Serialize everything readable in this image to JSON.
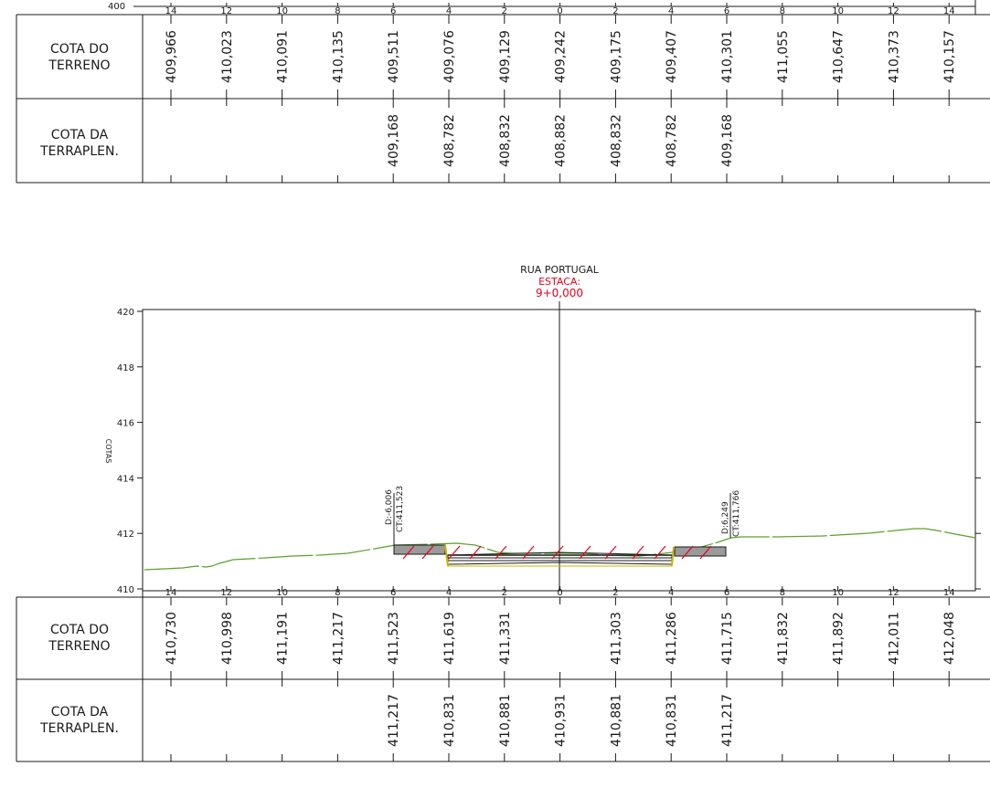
{
  "colors": {
    "line": "#1a1a1a",
    "terrain": "#5aa02c",
    "annotation": "#e8001c",
    "hatch": "#e8001c",
    "fill_gray": "#9a9a9a",
    "road_edge": "#c8b400"
  },
  "top_section": {
    "left_axis_label": "400",
    "offsets": [
      "14",
      "12",
      "10",
      "8",
      "6",
      "4",
      "2",
      "0",
      "2",
      "4",
      "6",
      "8",
      "10",
      "12",
      "14"
    ],
    "row_labels": {
      "terreno": [
        "COTA DO",
        "TERRENO"
      ],
      "terraplen": [
        "COTA DA",
        "TERRAPLEN."
      ]
    },
    "cota_terreno": [
      "409,966",
      "410,023",
      "410,091",
      "410,135",
      "409,511",
      "409,076",
      "409,129",
      "409,242",
      "409,175",
      "409,407",
      "410,301",
      "411,055",
      "410,647",
      "410,373",
      "410,157"
    ],
    "cota_terraplen": [
      "",
      "",
      "",
      "",
      "409,168",
      "408,782",
      "408,832",
      "408,882",
      "408,832",
      "408,782",
      "409,168",
      "",
      "",
      "",
      ""
    ]
  },
  "bottom_section": {
    "title": "RUA PORTUGAL",
    "station_label": "ESTACA:",
    "station_value": "9+0,000",
    "y_axis_label": "COTAS",
    "y_ticks": [
      "420",
      "418",
      "416",
      "414",
      "412",
      "410"
    ],
    "y_values": [
      420,
      418,
      416,
      414,
      412,
      410
    ],
    "offsets": [
      "14",
      "12",
      "10",
      "8",
      "6",
      "4",
      "2",
      "0",
      "2",
      "4",
      "6",
      "8",
      "10",
      "12",
      "14"
    ],
    "left_cut": {
      "d": "D:-6,006",
      "ct": "CT:411,523"
    },
    "right_cut": {
      "d": "D:6,249",
      "ct": "CT:411,766"
    },
    "row_labels": {
      "terreno": [
        "COTA DO",
        "TERRENO"
      ],
      "terraplen": [
        "COTA DA",
        "TERRAPLEN."
      ]
    },
    "cota_terreno": [
      "410,730",
      "410,998",
      "411,191",
      "411,217",
      "411,523",
      "411,619",
      "411,331",
      "",
      "411,303",
      "411,286",
      "411,715",
      "411,832",
      "411,892",
      "412,011",
      "412,048"
    ],
    "cota_terraplen": [
      "",
      "",
      "",
      "",
      "411,217",
      "410,831",
      "410,881",
      "410,931",
      "410,881",
      "410,831",
      "411,217",
      "",
      "",
      "",
      ""
    ]
  }
}
